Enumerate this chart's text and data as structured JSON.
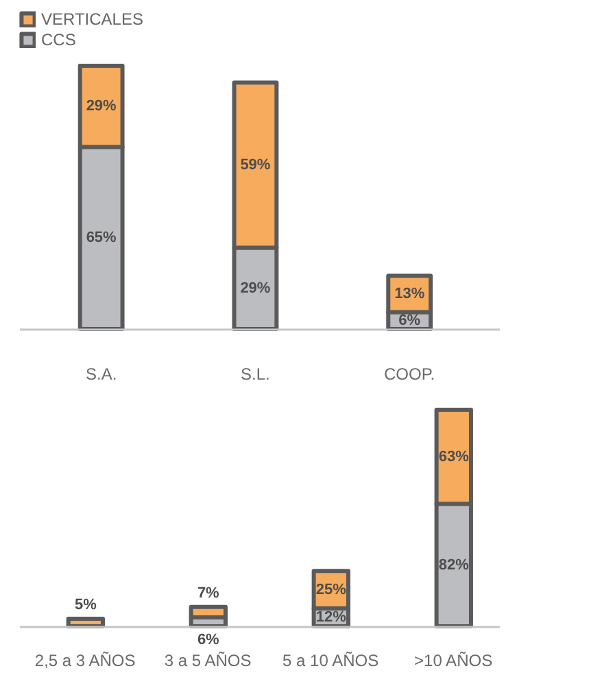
{
  "chart_data": [
    {
      "type": "bar",
      "stacked": true,
      "legend": "top left",
      "categories": [
        "S.A.",
        "S.L.",
        "COOP."
      ],
      "series": [
        {
          "name": "CCS",
          "color": "#bcbdc0",
          "values": [
            65,
            29,
            6
          ],
          "value_labels": [
            "65%",
            "29%",
            "6%"
          ]
        },
        {
          "name": "VERTICALES",
          "color": "#f7ab5c",
          "values": [
            29,
            59,
            13
          ],
          "value_labels": [
            "29%",
            "59%",
            "13%"
          ]
        }
      ]
    },
    {
      "type": "bar",
      "stacked": true,
      "categories": [
        "2,5 a 3 AÑOS",
        "3 a 5 AÑOS",
        "5 a 10 AÑOS",
        ">10 AÑOS"
      ],
      "series": [
        {
          "color": "#bcbdc0",
          "values": [
            null,
            6,
            12,
            82
          ],
          "value_labels": [
            null,
            "6%",
            "12%",
            "82%"
          ]
        },
        {
          "color": "#f7ab5c",
          "values": [
            5,
            7,
            25,
            63
          ],
          "value_labels": [
            "5%",
            "7%",
            "25%",
            "63%"
          ]
        }
      ]
    }
  ]
}
